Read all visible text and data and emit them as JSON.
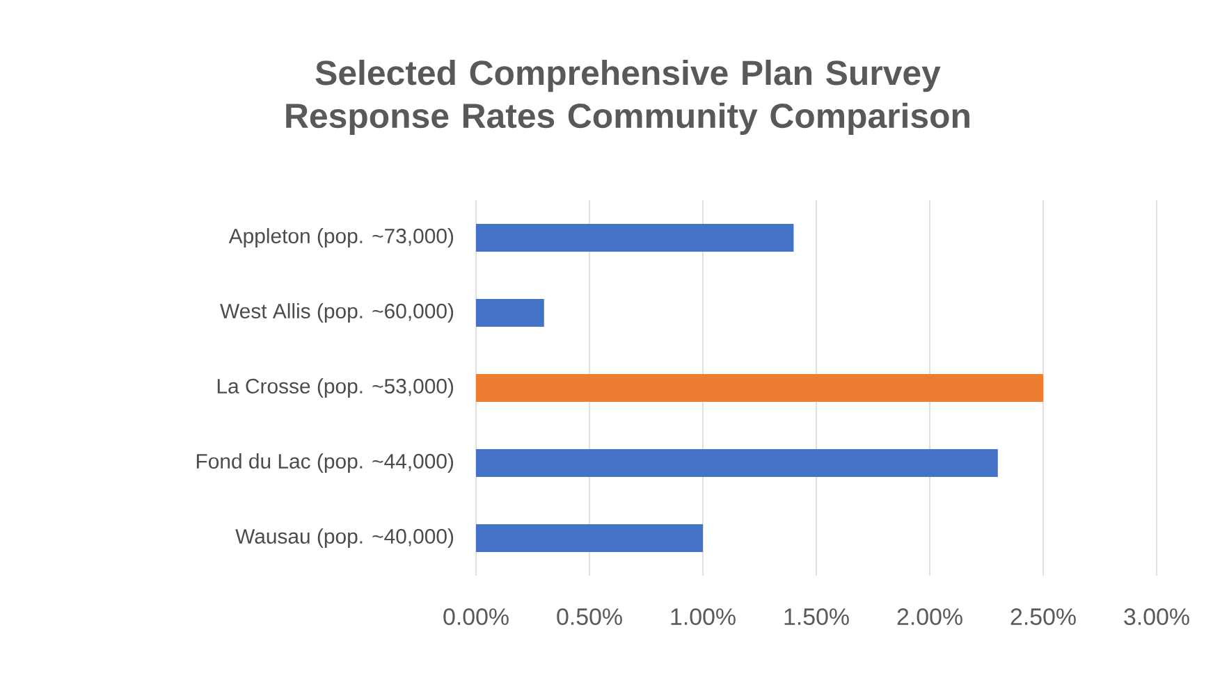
{
  "chart_data": {
    "type": "bar",
    "orientation": "horizontal",
    "title": "Selected Comprehensive Plan Survey Response Rates Community Comparison",
    "categories": [
      "Appleton (pop. ~73,000)",
      "West Allis (pop. ~60,000)",
      "La Crosse (pop. ~53,000)",
      "Fond du Lac (pop. ~44,000)",
      "Wausau (pop. ~40,000)"
    ],
    "values": [
      1.4,
      0.3,
      2.5,
      2.3,
      1.0
    ],
    "colors": [
      "#4472c4",
      "#4472c4",
      "#ed7d31",
      "#4472c4",
      "#4472c4"
    ],
    "xlim": [
      0,
      3
    ],
    "xticks": [
      {
        "value": 0,
        "label": "0.00%"
      },
      {
        "value": 0.5,
        "label": "0.50%"
      },
      {
        "value": 1,
        "label": "1.00%"
      },
      {
        "value": 1.5,
        "label": "1.50%"
      },
      {
        "value": 2,
        "label": "2.00%"
      },
      {
        "value": 2.5,
        "label": "2.50%"
      },
      {
        "value": 3,
        "label": "3.00%"
      }
    ],
    "grid": "x"
  }
}
